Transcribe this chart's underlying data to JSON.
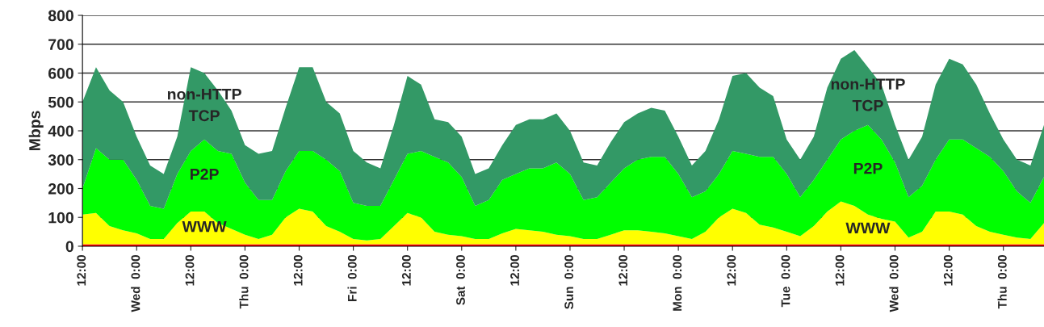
{
  "chart_data": {
    "type": "area",
    "stacked": true,
    "ylabel": "Mbps",
    "categories": [
      "12:00",
      null,
      null,
      null,
      "Wed  0:00",
      null,
      null,
      null,
      "12:00",
      null,
      null,
      null,
      "Thu  0:00",
      null,
      null,
      null,
      "12:00",
      null,
      null,
      null,
      "Fri  0:00",
      null,
      null,
      null,
      "12:00",
      null,
      null,
      null,
      "Sat  0:00",
      null,
      null,
      null,
      "12:00",
      null,
      null,
      null,
      "Sun  0:00",
      null,
      null,
      null,
      "12:00",
      null,
      null,
      null,
      "Mon  0:00",
      null,
      null,
      null,
      "12:00",
      null,
      null,
      null,
      "Tue  0:00",
      null,
      null,
      null,
      "12:00",
      null,
      null,
      null,
      "Wed  0:00",
      null,
      null,
      null,
      "12:00",
      null,
      null,
      null,
      "Thu  0:00",
      null,
      null,
      null
    ],
    "series": [
      {
        "color": "#ff0000",
        "values": [
          7,
          7,
          7,
          7,
          7,
          7,
          7,
          7,
          7,
          7,
          7,
          7,
          7,
          7,
          7,
          7,
          7,
          7,
          7,
          7,
          7,
          7,
          7,
          7,
          7,
          7,
          7,
          7,
          7,
          7,
          7,
          7,
          7,
          7,
          7,
          7,
          7,
          7,
          7,
          7,
          7,
          7,
          7,
          7,
          7,
          7,
          7,
          7,
          7,
          7,
          7,
          7,
          7,
          7,
          7,
          7,
          7,
          7,
          7,
          7,
          7,
          7,
          7,
          7,
          7,
          7,
          7,
          7,
          7,
          7,
          7,
          7
        ]
      },
      {
        "name": "WWW",
        "color": "#ffff00",
        "values": [
          103,
          108,
          63,
          48,
          38,
          18,
          18,
          73,
          113,
          113,
          73,
          53,
          33,
          18,
          33,
          93,
          123,
          113,
          63,
          43,
          18,
          13,
          18,
          63,
          108,
          93,
          43,
          33,
          28,
          18,
          18,
          38,
          53,
          48,
          43,
          33,
          28,
          18,
          18,
          33,
          48,
          48,
          43,
          38,
          28,
          18,
          43,
          93,
          123,
          108,
          68,
          58,
          43,
          28,
          63,
          113,
          148,
          133,
          103,
          88,
          78,
          23,
          43,
          113,
          113,
          103,
          63,
          43,
          33,
          23,
          18,
          73
        ]
      },
      {
        "name": "P2P",
        "color": "#00ff00",
        "values": [
          90,
          225,
          230,
          245,
          185,
          115,
          105,
          170,
          210,
          250,
          250,
          260,
          180,
          135,
          120,
          160,
          200,
          210,
          230,
          210,
          125,
          120,
          115,
          160,
          205,
          230,
          260,
          250,
          205,
          115,
          135,
          185,
          190,
          215,
          220,
          250,
          215,
          135,
          145,
          180,
          215,
          245,
          260,
          265,
          215,
          145,
          140,
          150,
          200,
          205,
          235,
          245,
          200,
          135,
          160,
          180,
          215,
          260,
          310,
          275,
          205,
          140,
          160,
          180,
          250,
          260,
          270,
          260,
          220,
          160,
          125,
          160
        ]
      },
      {
        "name": "non-HTTP\nTCP",
        "color": "#339966",
        "values": [
          300,
          280,
          240,
          200,
          150,
          140,
          120,
          130,
          290,
          230,
          210,
          150,
          130,
          160,
          170,
          220,
          290,
          290,
          200,
          200,
          180,
          150,
          130,
          190,
          270,
          230,
          130,
          140,
          140,
          110,
          110,
          120,
          170,
          170,
          170,
          170,
          150,
          130,
          110,
          140,
          160,
          160,
          170,
          160,
          130,
          110,
          140,
          190,
          260,
          280,
          240,
          210,
          120,
          130,
          150,
          250,
          280,
          280,
          200,
          190,
          130,
          130,
          170,
          260,
          280,
          260,
          220,
          150,
          110,
          110,
          130,
          180
        ]
      }
    ],
    "ylim": [
      0,
      800
    ],
    "yticks": [
      0,
      100,
      200,
      300,
      400,
      500,
      600,
      700,
      800
    ],
    "grid": "y"
  }
}
